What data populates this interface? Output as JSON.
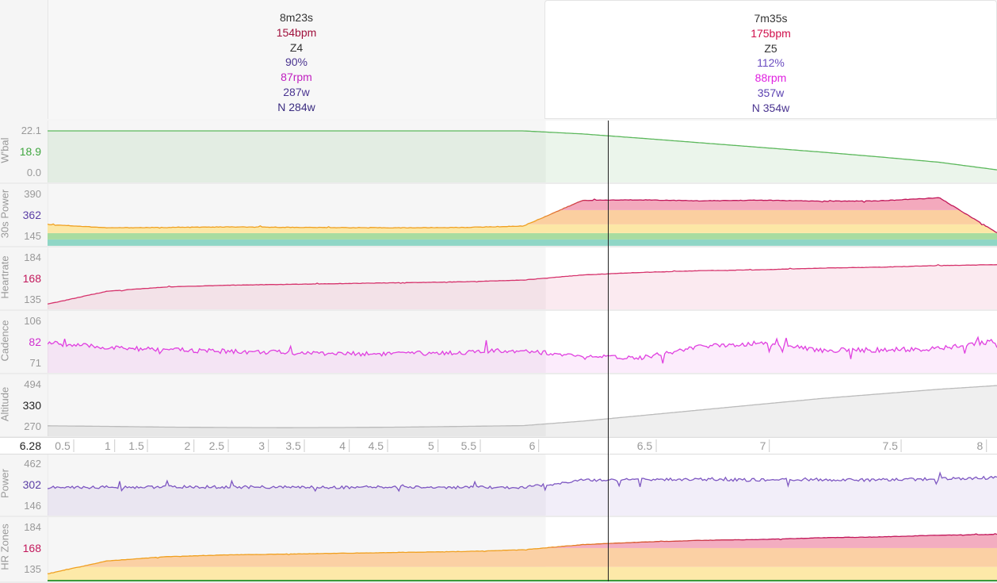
{
  "intervals": [
    {
      "duration": "8m23s",
      "hr": "154bpm",
      "zone": "Z4",
      "pct": "90%",
      "cadence": "87rpm",
      "power": "287w",
      "np": "N 284w"
    },
    {
      "duration": "7m35s",
      "hr": "175bpm",
      "zone": "Z5",
      "pct": "112%",
      "cadence": "88rpm",
      "power": "357w",
      "np": "N 354w"
    }
  ],
  "cursor": {
    "distance_label": "6.28",
    "time_min": 9.43
  },
  "chart_data": {
    "type": "line",
    "x_unit": "minutes",
    "x_range": [
      0,
      15.97
    ],
    "xaxis_ticks": [
      {
        "label": "0.5",
        "t": 0.45
      },
      {
        "label": "1",
        "t": 1.13
      },
      {
        "label": "1.5",
        "t": 1.69
      },
      {
        "label": "2",
        "t": 2.47
      },
      {
        "label": "2.5",
        "t": 3.04
      },
      {
        "label": "3",
        "t": 3.72
      },
      {
        "label": "3.5",
        "t": 4.33
      },
      {
        "label": "4",
        "t": 5.08
      },
      {
        "label": "4.5",
        "t": 5.72
      },
      {
        "label": "5",
        "t": 6.57
      },
      {
        "label": "5.5",
        "t": 7.28
      },
      {
        "label": "6",
        "t": 8.27
      },
      {
        "label": "6.5",
        "t": 10.24
      },
      {
        "label": "7",
        "t": 12.15
      },
      {
        "label": "7.5",
        "t": 14.37
      },
      {
        "label": "8",
        "t": 15.8
      }
    ],
    "interval_split_min": 8.38,
    "panels": [
      {
        "id": "wbal",
        "title": "W'bal",
        "ticks": [
          "22.1",
          "18.9",
          "0.0"
        ],
        "range": [
          0,
          22.1
        ],
        "color": "#3fa63f",
        "line": "#5cb85c",
        "fill": "rgba(120,190,120,0.15)",
        "jitter": 0,
        "values": [
          22.1,
          22.1,
          22.1,
          22.1,
          22.1,
          22.1,
          22.1,
          22.1,
          22.1,
          20.5,
          18.2,
          15.8,
          13.4,
          11,
          8.4,
          5.6,
          1.5
        ]
      },
      {
        "id": "power30",
        "title": "30s Power",
        "ticks": [
          "390",
          "362",
          "145"
        ],
        "range": [
          145,
          390
        ],
        "color": "#5b3fa6",
        "line": "#f0a020",
        "line2": "#c2185b",
        "zones": true,
        "jitter": 3,
        "values": [
          215,
          195,
          197,
          200,
          198,
          196,
          195,
          197,
          205,
          355,
          358,
          352,
          356,
          350,
          352,
          370,
          160
        ]
      },
      {
        "id": "heartrate",
        "title": "Heartrate",
        "ticks": [
          "184",
          "168",
          "135"
        ],
        "range": [
          135,
          184
        ],
        "color": "#c2185b",
        "line": "#d6336c",
        "fill": "rgba(214,51,108,0.10)",
        "jitter": 0.4,
        "values": [
          130,
          145,
          150,
          152,
          153,
          154,
          155,
          156,
          158,
          164,
          167,
          169,
          170,
          172,
          173,
          175,
          176
        ]
      },
      {
        "id": "cadence",
        "title": "Cadence",
        "ticks": [
          "106",
          "82",
          "71"
        ],
        "range": [
          71,
          106
        ],
        "color": "#d02ed0",
        "line": "#e040e0",
        "fill": "rgba(224,64,224,0.10)",
        "jitter": 4,
        "values": [
          88,
          84,
          82,
          81,
          80,
          79,
          79,
          80,
          82,
          76,
          76,
          85,
          88,
          82,
          82,
          83,
          90
        ]
      },
      {
        "id": "altitude",
        "title": "Altitude",
        "ticks": [
          "494",
          "330",
          "270"
        ],
        "range": [
          270,
          494
        ],
        "color": "#222222",
        "line": "#bbbbbb",
        "fill": "rgba(150,150,150,0.15)",
        "jitter": 0,
        "values": [
          275,
          272,
          268,
          266,
          265,
          266,
          268,
          272,
          276,
          300,
          330,
          360,
          390,
          420,
          445,
          470,
          490
        ]
      },
      {
        "id": "power",
        "title": "Power",
        "ticks": [
          "462",
          "302",
          "146"
        ],
        "range": [
          146,
          462
        ],
        "color": "#5b3fa6",
        "line": "#7e57c2",
        "fill": "rgba(126,87,194,0.10)",
        "jitter": 22,
        "values": [
          285,
          288,
          290,
          289,
          288,
          287,
          289,
          286,
          285,
          340,
          345,
          345,
          343,
          345,
          342,
          350,
          360
        ]
      },
      {
        "id": "hrzones",
        "title": "HR Zones",
        "ticks": [
          "184",
          "168",
          "135"
        ],
        "range": [
          135,
          184
        ],
        "color": "#c2185b",
        "line": "#f0a020",
        "line2": "#c2185b",
        "hrzones": true,
        "jitter": 0.4,
        "values": [
          130,
          145,
          150,
          152,
          153,
          154,
          155,
          156,
          158,
          164,
          167,
          169,
          170,
          172,
          173,
          175,
          176
        ]
      }
    ]
  }
}
